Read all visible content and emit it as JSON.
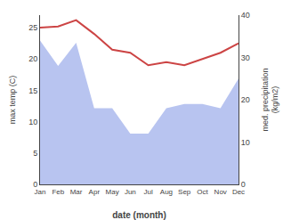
{
  "chart_data": {
    "type": "line",
    "xlabel": "date (month)",
    "ylabel": "max temp (C)",
    "y2label": "med. precipitation\n(kg/m2)",
    "categories": [
      "Jan",
      "Feb",
      "Mar",
      "Apr",
      "May",
      "Jun",
      "Jul",
      "Aug",
      "Sep",
      "Oct",
      "Nov",
      "Dec"
    ],
    "series": [
      {
        "type": "area",
        "axis": "y2",
        "color": "#b8c4f0",
        "values": [
          34.0,
          28.0,
          33.5,
          18.0,
          18.0,
          12.0,
          12.0,
          18.0,
          19.0,
          19.0,
          18.0,
          25.0
        ]
      },
      {
        "type": "line",
        "color": "#cc4444",
        "values": [
          25.0,
          25.2,
          26.2,
          24.0,
          21.5,
          21.0,
          19.0,
          19.5,
          19.0,
          20.0,
          21.0,
          22.5
        ]
      }
    ],
    "ylim": [
      0,
      27
    ],
    "yticks": [
      0,
      5,
      10,
      15,
      20,
      25
    ],
    "y2lim": [
      0,
      40
    ],
    "y2ticks": [
      0,
      10,
      20,
      30,
      40
    ],
    "grid": false
  }
}
